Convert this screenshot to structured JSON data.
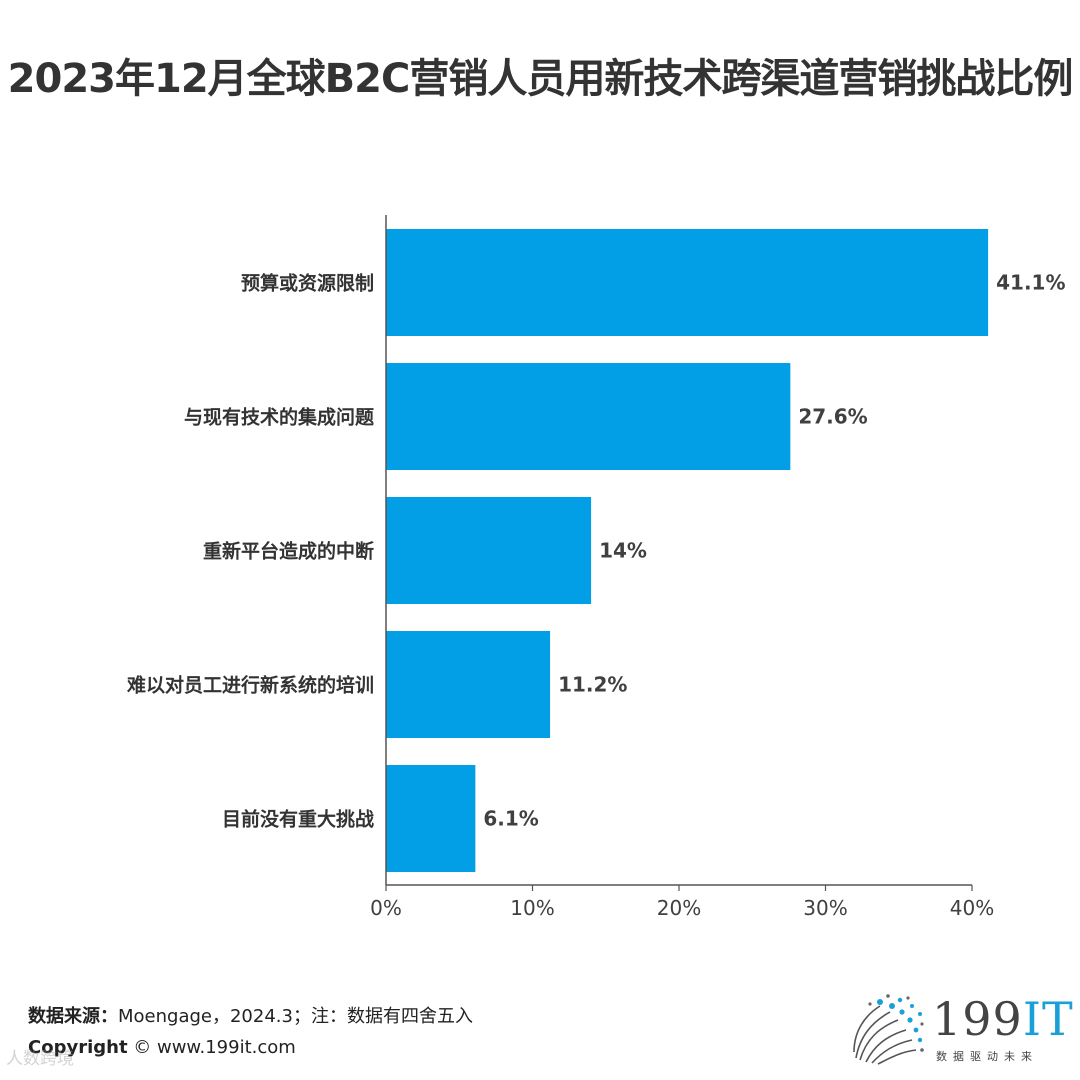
{
  "chart_data": {
    "type": "bar",
    "orientation": "horizontal",
    "title": "2023年12月全球B2C营销人员用新技术跨渠道营销挑战比例",
    "categories": [
      "预算或资源限制",
      "与现有技术的集成问题",
      "重新平台造成的中断",
      "难以对员工进行新系统的培训",
      "目前没有重大挑战"
    ],
    "values": [
      41.1,
      27.6,
      14,
      11.2,
      6.1
    ],
    "value_labels": [
      "41.1%",
      "27.6%",
      "14%",
      "11.2%",
      "6.1%"
    ],
    "xlim": [
      0,
      40
    ],
    "xticks": [
      0,
      10,
      20,
      30,
      40
    ],
    "xtick_labels": [
      "0%",
      "10%",
      "20%",
      "30%",
      "40%"
    ],
    "xlabel": "",
    "ylabel": "",
    "grid": false,
    "bar_color": "#039fe6"
  },
  "footer": {
    "source_label": "数据来源：",
    "source_text": "Moengage，2024.3；注：数据有四舍五入",
    "copyright_label": "Copyright",
    "copyright_text": " © www.199it.com"
  },
  "watermark": "人数跨境",
  "logo": {
    "number": "199",
    "suffix": "IT",
    "tagline": "数据驱动未来"
  },
  "colors": {
    "accent": "#1aa0d8",
    "text": "#333333",
    "axis": "#555555"
  }
}
